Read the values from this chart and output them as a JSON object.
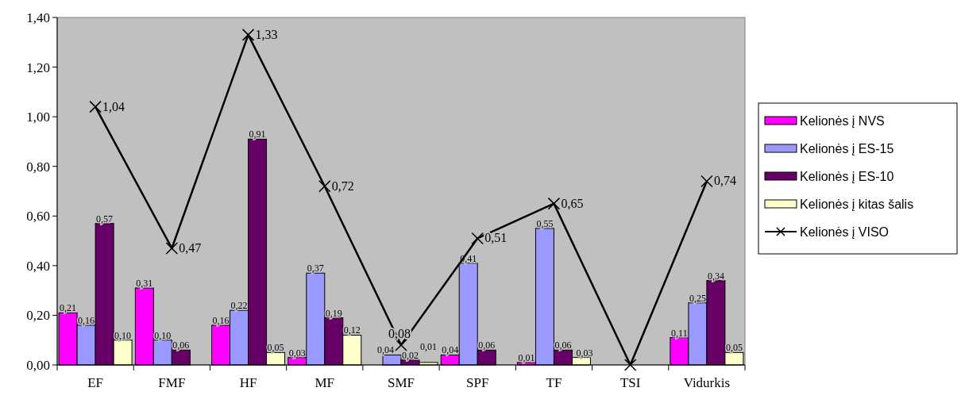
{
  "chart_data": {
    "type": "bar",
    "categories": [
      "EF",
      "FMF",
      "HF",
      "MF",
      "SMF",
      "SPF",
      "TF",
      "TSI",
      "Vidurkis"
    ],
    "series": [
      {
        "name": "Kelionės į NVS",
        "color": "#ff00ff",
        "values": [
          0.21,
          0.31,
          0.16,
          0.03,
          null,
          0.04,
          0.01,
          null,
          0.11
        ],
        "value_labels": [
          "0,21",
          "0,31",
          "0,16",
          "0,03",
          null,
          "0,04",
          "0,01",
          null,
          "0,11"
        ]
      },
      {
        "name": "Kelionės į ES-15",
        "color": "#9999ff",
        "values": [
          0.16,
          0.1,
          0.22,
          0.37,
          0.04,
          0.41,
          0.55,
          null,
          0.25
        ],
        "value_labels": [
          "0,16",
          "0,10",
          "0,22",
          "0,37",
          "0,04",
          "0,41",
          "0,55",
          null,
          "0,25"
        ]
      },
      {
        "name": "Kelionės į ES-10",
        "color": "#660066",
        "values": [
          0.57,
          0.06,
          0.91,
          0.19,
          0.02,
          0.06,
          0.06,
          null,
          0.34
        ],
        "value_labels": [
          "0,57",
          "0,06",
          "0,91",
          "0,19",
          "0,02",
          "0,06",
          "0,06",
          null,
          "0,34"
        ]
      },
      {
        "name": "Kelionės į kitas šalis",
        "color": "#ffffcc",
        "values": [
          0.1,
          null,
          0.05,
          0.12,
          0.01,
          null,
          0.03,
          null,
          0.05
        ],
        "value_labels": [
          "0,10",
          null,
          "0,05",
          "0,12",
          "0,01",
          null,
          "0,03",
          null,
          "0,05"
        ]
      },
      {
        "name": "Kelionės į VISO",
        "type": "line",
        "color": "#000000",
        "marker": "cross",
        "values": [
          1.04,
          0.47,
          1.33,
          0.72,
          0.08,
          0.51,
          0.65,
          0,
          0.74
        ],
        "value_labels": [
          "1,04",
          "0,47",
          "1,33",
          "0,72",
          "0,08",
          "0,51",
          "0,65",
          null,
          "0,74"
        ]
      }
    ],
    "ylim": [
      0,
      1.4
    ],
    "yticks": [
      {
        "value": 0,
        "label": "0,00"
      },
      {
        "value": 0.2,
        "label": "0,20"
      },
      {
        "value": 0.4,
        "label": "0,40"
      },
      {
        "value": 0.6,
        "label": "0,60"
      },
      {
        "value": 0.8,
        "label": "0,80"
      },
      {
        "value": 1.0,
        "label": "1,00"
      },
      {
        "value": 1.2,
        "label": "1,20"
      },
      {
        "value": 1.4,
        "label": "1,40"
      }
    ],
    "grid": false,
    "legend": "right"
  }
}
